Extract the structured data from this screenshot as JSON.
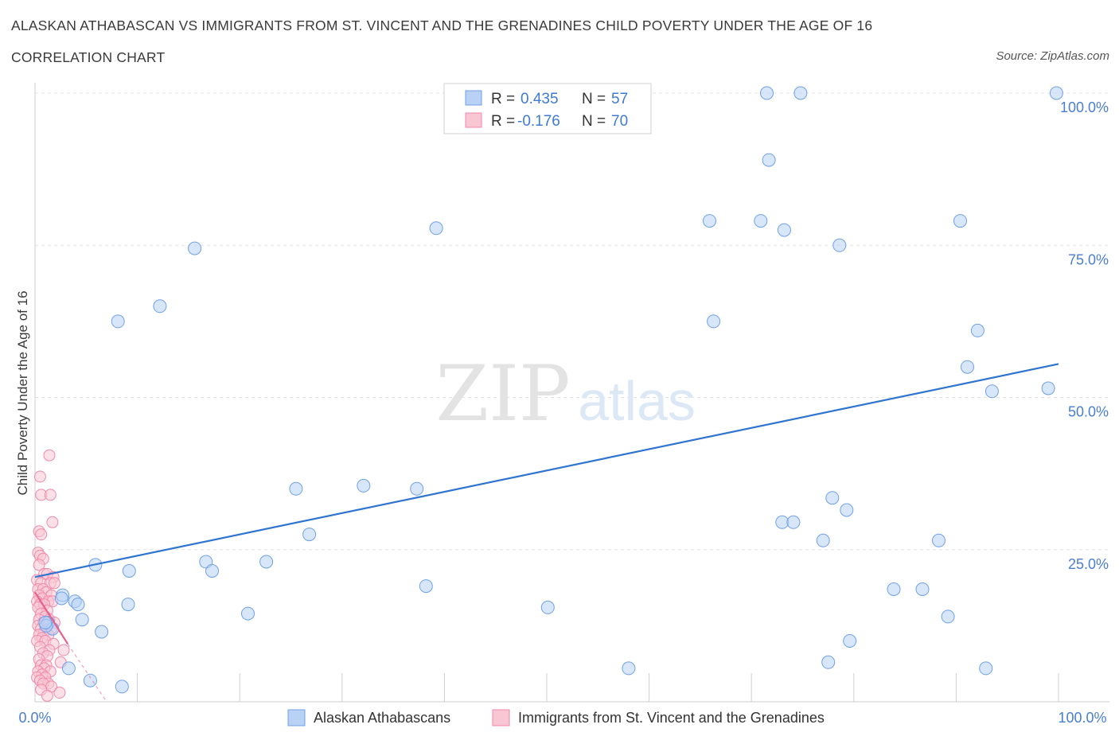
{
  "header": {
    "title": "ALASKAN ATHABASCAN VS IMMIGRANTS FROM ST. VINCENT AND THE GRENADINES CHILD POVERTY UNDER THE AGE OF 16",
    "subtitle": "CORRELATION CHART",
    "source": "Source: ZipAtlas.com"
  },
  "watermark": {
    "zip": "ZIP",
    "atlas": "atlas"
  },
  "legend_box": {
    "rows": [
      {
        "r_label": "R = ",
        "r_value": "0.435",
        "n_label": "N = ",
        "n_value": "57",
        "color": "#6fa0e8"
      },
      {
        "r_label": "R = ",
        "r_value": "-0.176",
        "n_label": "N = ",
        "n_value": "70",
        "color": "#f08aaa"
      }
    ]
  },
  "chart_data": {
    "type": "scatter",
    "title": "ALASKAN ATHABASCAN VS IMMIGRANTS FROM ST. VINCENT AND THE GRENADINES CHILD POVERTY UNDER THE AGE OF 16",
    "xlabel": "",
    "ylabel": "Child Poverty Under the Age of 16",
    "xlim": [
      0,
      100
    ],
    "ylim": [
      0,
      100
    ],
    "x_tick_labels": [
      "0.0%",
      "100.0%"
    ],
    "y_tick_labels": [
      {
        "value": 25,
        "label": "25.0%"
      },
      {
        "value": 50,
        "label": "50.0%"
      },
      {
        "value": 75,
        "label": "75.0%"
      },
      {
        "value": 100,
        "label": "100.0%"
      }
    ],
    "grid": true,
    "legend_position": "bottom",
    "series": [
      {
        "name": "Alaskan Athabascans",
        "fill": "#b8d1f5",
        "stroke": "#6fa0e8",
        "trend_color": "#2e74d0",
        "trend": {
          "x": [
            0,
            100
          ],
          "y": [
            20.5,
            55.5
          ],
          "style": "solid"
        },
        "points": [
          [
            71.5,
            100
          ],
          [
            74.8,
            100
          ],
          [
            99.8,
            100
          ],
          [
            71.7,
            89
          ],
          [
            65.9,
            79
          ],
          [
            70.9,
            79
          ],
          [
            73.2,
            77.5
          ],
          [
            90.4,
            79
          ],
          [
            78.6,
            75
          ],
          [
            39.2,
            77.8
          ],
          [
            15.6,
            74.5
          ],
          [
            12.2,
            65
          ],
          [
            8.1,
            62.5
          ],
          [
            66.3,
            62.5
          ],
          [
            92.1,
            61
          ],
          [
            91.1,
            55
          ],
          [
            93.5,
            51
          ],
          [
            99.0,
            51.5
          ],
          [
            25.5,
            35
          ],
          [
            32.1,
            35.5
          ],
          [
            37.3,
            35
          ],
          [
            77.9,
            33.5
          ],
          [
            79.3,
            31.5
          ],
          [
            73.0,
            29.5
          ],
          [
            74.1,
            29.5
          ],
          [
            26.8,
            27.5
          ],
          [
            77.0,
            26.5
          ],
          [
            88.3,
            26.5
          ],
          [
            22.6,
            23
          ],
          [
            16.7,
            23
          ],
          [
            17.3,
            21.5
          ],
          [
            9.2,
            21.5
          ],
          [
            5.9,
            22.5
          ],
          [
            38.2,
            19
          ],
          [
            83.9,
            18.5
          ],
          [
            86.7,
            18.5
          ],
          [
            2.7,
            17.5
          ],
          [
            3.9,
            16.5
          ],
          [
            4.2,
            16
          ],
          [
            9.1,
            16
          ],
          [
            20.8,
            14.5
          ],
          [
            50.1,
            15.5
          ],
          [
            89.2,
            14
          ],
          [
            4.6,
            13.5
          ],
          [
            1.3,
            13
          ],
          [
            1.7,
            12
          ],
          [
            6.5,
            11.5
          ],
          [
            79.6,
            10
          ],
          [
            77.5,
            6.5
          ],
          [
            58.0,
            5.5
          ],
          [
            92.9,
            5.5
          ],
          [
            3.3,
            5.5
          ],
          [
            5.4,
            3.5
          ],
          [
            8.5,
            2.5
          ],
          [
            2.6,
            17
          ],
          [
            1.1,
            12.5
          ],
          [
            1.0,
            13
          ]
        ]
      },
      {
        "name": "Immigrants from St. Vincent and the Grenadines",
        "fill": "#f9c6d4",
        "stroke": "#f08aaa",
        "trend_color": "#e8608c",
        "trend": {
          "x": [
            0,
            3.2
          ],
          "y": [
            18,
            9.5
          ],
          "style": "solid",
          "extension": {
            "x": [
              3.2,
              7.0
            ],
            "y": [
              9.5,
              0
            ]
          }
        },
        "points": [
          [
            1.4,
            40.5
          ],
          [
            0.5,
            37
          ],
          [
            0.6,
            34
          ],
          [
            1.5,
            34
          ],
          [
            1.7,
            29.5
          ],
          [
            0.4,
            28
          ],
          [
            0.6,
            27.5
          ],
          [
            0.3,
            24.5
          ],
          [
            0.5,
            24
          ],
          [
            0.8,
            23.5
          ],
          [
            0.4,
            22.5
          ],
          [
            0.9,
            21
          ],
          [
            1.2,
            21
          ],
          [
            1.8,
            20.5
          ],
          [
            0.2,
            20
          ],
          [
            0.6,
            19.5
          ],
          [
            1.5,
            19.5
          ],
          [
            1.9,
            19.5
          ],
          [
            0.3,
            18.5
          ],
          [
            0.8,
            18.5
          ],
          [
            1.1,
            18
          ],
          [
            0.4,
            17.5
          ],
          [
            1.6,
            17.5
          ],
          [
            0.7,
            17
          ],
          [
            0.2,
            16.5
          ],
          [
            1.3,
            16.5
          ],
          [
            1.7,
            16.5
          ],
          [
            0.5,
            16
          ],
          [
            0.9,
            16
          ],
          [
            0.3,
            15.5
          ],
          [
            1.2,
            15
          ],
          [
            0.6,
            14.5
          ],
          [
            1.0,
            14
          ],
          [
            0.4,
            13.5
          ],
          [
            1.4,
            13.5
          ],
          [
            0.8,
            13
          ],
          [
            1.9,
            13
          ],
          [
            0.3,
            12.5
          ],
          [
            1.1,
            12.5
          ],
          [
            0.6,
            12
          ],
          [
            1.6,
            12
          ],
          [
            0.9,
            11.5
          ],
          [
            0.4,
            11
          ],
          [
            1.3,
            11
          ],
          [
            0.7,
            10.5
          ],
          [
            0.2,
            10
          ],
          [
            1.0,
            10
          ],
          [
            1.8,
            9.5
          ],
          [
            0.5,
            9
          ],
          [
            1.4,
            8.5
          ],
          [
            2.8,
            8.5
          ],
          [
            0.8,
            8
          ],
          [
            1.2,
            7.5
          ],
          [
            0.4,
            7
          ],
          [
            2.5,
            6.5
          ],
          [
            0.6,
            6
          ],
          [
            1.1,
            6
          ],
          [
            0.9,
            5.5
          ],
          [
            0.3,
            5
          ],
          [
            1.5,
            5
          ],
          [
            0.7,
            4.5
          ],
          [
            0.2,
            4
          ],
          [
            1.0,
            4
          ],
          [
            0.5,
            3.5
          ],
          [
            1.3,
            3
          ],
          [
            0.8,
            3
          ],
          [
            1.6,
            2.5
          ],
          [
            2.4,
            1.5
          ],
          [
            0.6,
            2
          ],
          [
            1.2,
            1
          ]
        ]
      }
    ]
  }
}
